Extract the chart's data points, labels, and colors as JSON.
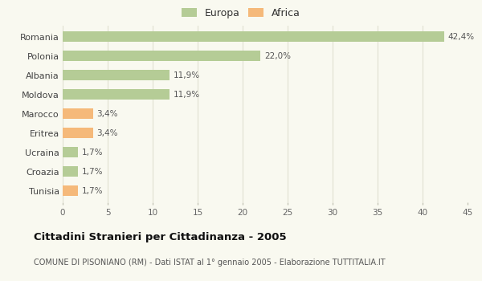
{
  "categories": [
    "Romania",
    "Polonia",
    "Albania",
    "Moldova",
    "Marocco",
    "Eritrea",
    "Ucraina",
    "Croazia",
    "Tunisia"
  ],
  "values": [
    42.4,
    22.0,
    11.9,
    11.9,
    3.4,
    3.4,
    1.7,
    1.7,
    1.7
  ],
  "labels": [
    "42,4%",
    "22,0%",
    "11,9%",
    "11,9%",
    "3,4%",
    "3,4%",
    "1,7%",
    "1,7%",
    "1,7%"
  ],
  "colors": [
    "#b5cc96",
    "#b5cc96",
    "#b5cc96",
    "#b5cc96",
    "#f5b97a",
    "#f5b97a",
    "#b5cc96",
    "#b5cc96",
    "#f5b97a"
  ],
  "legend_colors": {
    "Europa": "#b5cc96",
    "Africa": "#f5b97a"
  },
  "xlim": [
    0,
    45
  ],
  "xticks": [
    0,
    5,
    10,
    15,
    20,
    25,
    30,
    35,
    40,
    45
  ],
  "title": "Cittadini Stranieri per Cittadinanza - 2005",
  "subtitle": "COMUNE DI PISONIANO (RM) - Dati ISTAT al 1° gennaio 2005 - Elaborazione TUTTITALIA.IT",
  "bg_color": "#f9f9f0",
  "grid_color": "#ddddcc",
  "bar_height": 0.55
}
